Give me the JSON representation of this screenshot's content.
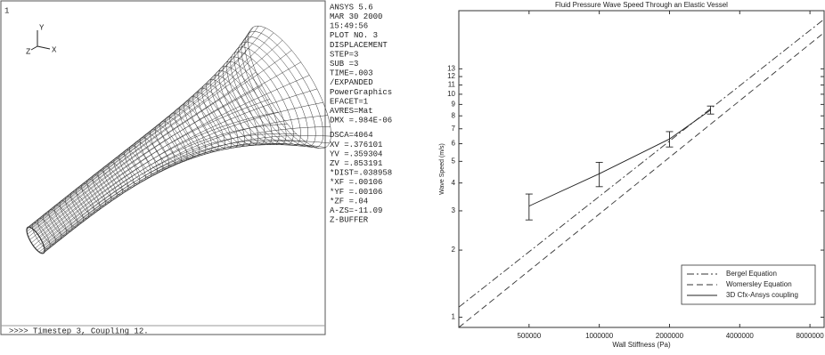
{
  "ansys_panel": {
    "window_number": "1",
    "triad": [
      "Y",
      "X",
      "Z"
    ],
    "info": [
      "ANSYS 5.6",
      "MAR 30 2000",
      "15:49:56",
      "PLOT NO.   3",
      "DISPLACEMENT",
      "STEP=3",
      "SUB =3",
      "TIME=.003",
      "/EXPANDED",
      "PowerGraphics",
      "EFACET=1",
      "AVRES=Mat",
      "DMX =.984E-06",
      "DSCA=4064",
      "XV  =.376101",
      "YV  =.359304",
      "ZV  =.853191",
      "*DIST=.038958",
      "*XF  =.00106",
      "*YF  =.00106",
      "*ZF  =.04",
      "A-ZS=-11.09",
      "Z-BUFFER"
    ],
    "status": ">>>> Timestep 3, Coupling 12."
  },
  "chart_data": {
    "type": "line",
    "title": "Fluid Pressure Wave Speed Through an Elastic Vessel",
    "x_label": "Wall Stiffness (Pa)",
    "y_label": "Wave Speed (m/s)",
    "log_x": true,
    "log_y": true,
    "legend": "lower right",
    "xlim": [
      250000,
      9200000
    ],
    "xticks": [
      500000,
      1000000,
      2000000,
      4000000,
      8000000
    ],
    "ylim": [
      0.9,
      23.7
    ],
    "yticks": [
      1,
      2,
      3,
      4,
      5,
      6,
      7,
      8,
      9,
      10,
      11,
      12,
      13
    ],
    "series": [
      {
        "name": "Bergel Equation",
        "color": "#333333",
        "dash": "8 3 2 3",
        "x": [
          250000,
          9200000
        ],
        "values": [
          1.11,
          21.7
        ]
      },
      {
        "name": "Womersley Equation",
        "color": "#333333",
        "dash": "7 4",
        "x": [
          250000,
          9200000
        ],
        "values": [
          0.9,
          18.9
        ]
      },
      {
        "name": "3D Cfx-Ansys coupling",
        "color": "#222222",
        "dash": "none",
        "x": [
          500000,
          1000000,
          2000000,
          3000000
        ],
        "values": [
          3.15,
          4.4,
          6.3,
          8.5
        ],
        "errors": [
          0.42,
          0.55,
          0.5,
          0.35
        ]
      }
    ]
  }
}
